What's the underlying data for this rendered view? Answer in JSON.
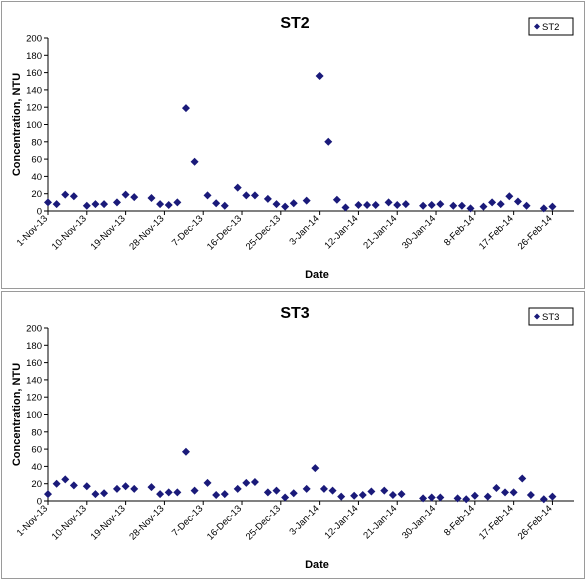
{
  "chart_data": [
    {
      "type": "scatter",
      "title": "ST2",
      "xlabel": "Date",
      "ylabel": "Concentration, NTU",
      "ylim": [
        0,
        200
      ],
      "yticks": [
        0,
        20,
        40,
        60,
        80,
        100,
        120,
        140,
        160,
        180,
        200
      ],
      "xlim": [
        "2013-11-01",
        "2014-03-03"
      ],
      "xtick_labels": [
        "1-Nov-13",
        "10-Nov-13",
        "19-Nov-13",
        "28-Nov-13",
        "7-Dec-13",
        "16-Dec-13",
        "25-Dec-13",
        "3-Jan-14",
        "12-Jan-14",
        "21-Jan-14",
        "30-Jan-14",
        "8-Feb-14",
        "17-Feb-14",
        "26-Feb-14"
      ],
      "xtick_dates": [
        "2013-11-01",
        "2013-11-10",
        "2013-11-19",
        "2013-11-28",
        "2013-12-07",
        "2013-12-16",
        "2013-12-25",
        "2014-01-03",
        "2014-01-12",
        "2014-01-21",
        "2014-01-30",
        "2014-02-08",
        "2014-02-17",
        "2014-02-26"
      ],
      "legend": "top-right",
      "grid": false,
      "series": [
        {
          "name": "ST2",
          "color": "#1a1a7a",
          "marker": "diamond",
          "points": [
            [
              "2013-11-01",
              10
            ],
            [
              "2013-11-03",
              8
            ],
            [
              "2013-11-05",
              19
            ],
            [
              "2013-11-07",
              17
            ],
            [
              "2013-11-10",
              6
            ],
            [
              "2013-11-12",
              8
            ],
            [
              "2013-11-14",
              8
            ],
            [
              "2013-11-17",
              10
            ],
            [
              "2013-11-19",
              19
            ],
            [
              "2013-11-21",
              16
            ],
            [
              "2013-11-25",
              15
            ],
            [
              "2013-11-27",
              8
            ],
            [
              "2013-11-29",
              7
            ],
            [
              "2013-12-01",
              10
            ],
            [
              "2013-12-03",
              119
            ],
            [
              "2013-12-05",
              57
            ],
            [
              "2013-12-08",
              18
            ],
            [
              "2013-12-10",
              9
            ],
            [
              "2013-12-12",
              6
            ],
            [
              "2013-12-15",
              27
            ],
            [
              "2013-12-17",
              18
            ],
            [
              "2013-12-19",
              18
            ],
            [
              "2013-12-22",
              14
            ],
            [
              "2013-12-24",
              8
            ],
            [
              "2013-12-26",
              5
            ],
            [
              "2013-12-28",
              9
            ],
            [
              "2013-12-31",
              12
            ],
            [
              "2014-01-03",
              156
            ],
            [
              "2014-01-05",
              80
            ],
            [
              "2014-01-07",
              13
            ],
            [
              "2014-01-09",
              4
            ],
            [
              "2014-01-12",
              7
            ],
            [
              "2014-01-14",
              7
            ],
            [
              "2014-01-16",
              7
            ],
            [
              "2014-01-19",
              10
            ],
            [
              "2014-01-21",
              7
            ],
            [
              "2014-01-23",
              8
            ],
            [
              "2014-01-27",
              6
            ],
            [
              "2014-01-29",
              7
            ],
            [
              "2014-01-31",
              8
            ],
            [
              "2014-02-03",
              6
            ],
            [
              "2014-02-05",
              6
            ],
            [
              "2014-02-07",
              3
            ],
            [
              "2014-02-10",
              5
            ],
            [
              "2014-02-12",
              10
            ],
            [
              "2014-02-14",
              8
            ],
            [
              "2014-02-16",
              17
            ],
            [
              "2014-02-18",
              11
            ],
            [
              "2014-02-20",
              6
            ],
            [
              "2014-02-24",
              3
            ],
            [
              "2014-02-26",
              5
            ]
          ]
        }
      ]
    },
    {
      "type": "scatter",
      "title": "ST3",
      "xlabel": "Date",
      "ylabel": "Concentration, NTU",
      "ylim": [
        0,
        200
      ],
      "yticks": [
        0,
        20,
        40,
        60,
        80,
        100,
        120,
        140,
        160,
        180,
        200
      ],
      "xlim": [
        "2013-11-01",
        "2014-03-03"
      ],
      "xtick_labels": [
        "1-Nov-13",
        "10-Nov-13",
        "19-Nov-13",
        "28-Nov-13",
        "7-Dec-13",
        "16-Dec-13",
        "25-Dec-13",
        "3-Jan-14",
        "12-Jan-14",
        "21-Jan-14",
        "30-Jan-14",
        "8-Feb-14",
        "17-Feb-14",
        "26-Feb-14"
      ],
      "xtick_dates": [
        "2013-11-01",
        "2013-11-10",
        "2013-11-19",
        "2013-11-28",
        "2013-12-07",
        "2013-12-16",
        "2013-12-25",
        "2014-01-03",
        "2014-01-12",
        "2014-01-21",
        "2014-01-30",
        "2014-02-08",
        "2014-02-17",
        "2014-02-26"
      ],
      "legend": "top-right",
      "grid": false,
      "series": [
        {
          "name": "ST3",
          "color": "#1a1a7a",
          "marker": "diamond",
          "points": [
            [
              "2013-11-01",
              8
            ],
            [
              "2013-11-03",
              20
            ],
            [
              "2013-11-05",
              25
            ],
            [
              "2013-11-07",
              18
            ],
            [
              "2013-11-10",
              17
            ],
            [
              "2013-11-12",
              8
            ],
            [
              "2013-11-14",
              9
            ],
            [
              "2013-11-17",
              14
            ],
            [
              "2013-11-19",
              17
            ],
            [
              "2013-11-21",
              14
            ],
            [
              "2013-11-25",
              16
            ],
            [
              "2013-11-27",
              8
            ],
            [
              "2013-11-29",
              10
            ],
            [
              "2013-12-01",
              10
            ],
            [
              "2013-12-03",
              57
            ],
            [
              "2013-12-05",
              12
            ],
            [
              "2013-12-08",
              21
            ],
            [
              "2013-12-10",
              7
            ],
            [
              "2013-12-12",
              8
            ],
            [
              "2013-12-15",
              14
            ],
            [
              "2013-12-17",
              21
            ],
            [
              "2013-12-19",
              22
            ],
            [
              "2013-12-22",
              10
            ],
            [
              "2013-12-24",
              12
            ],
            [
              "2013-12-26",
              4
            ],
            [
              "2013-12-28",
              9
            ],
            [
              "2013-12-31",
              14
            ],
            [
              "2014-01-02",
              38
            ],
            [
              "2014-01-04",
              14
            ],
            [
              "2014-01-06",
              12
            ],
            [
              "2014-01-08",
              5
            ],
            [
              "2014-01-11",
              6
            ],
            [
              "2014-01-13",
              7
            ],
            [
              "2014-01-15",
              11
            ],
            [
              "2014-01-18",
              12
            ],
            [
              "2014-01-20",
              7
            ],
            [
              "2014-01-22",
              8
            ],
            [
              "2014-01-27",
              3
            ],
            [
              "2014-01-29",
              4
            ],
            [
              "2014-01-31",
              4
            ],
            [
              "2014-02-04",
              3
            ],
            [
              "2014-02-06",
              2
            ],
            [
              "2014-02-08",
              6
            ],
            [
              "2014-02-11",
              5
            ],
            [
              "2014-02-13",
              15
            ],
            [
              "2014-02-15",
              10
            ],
            [
              "2014-02-17",
              10
            ],
            [
              "2014-02-19",
              26
            ],
            [
              "2014-02-21",
              7
            ],
            [
              "2014-02-24",
              2
            ],
            [
              "2014-02-26",
              5
            ]
          ]
        }
      ]
    }
  ]
}
